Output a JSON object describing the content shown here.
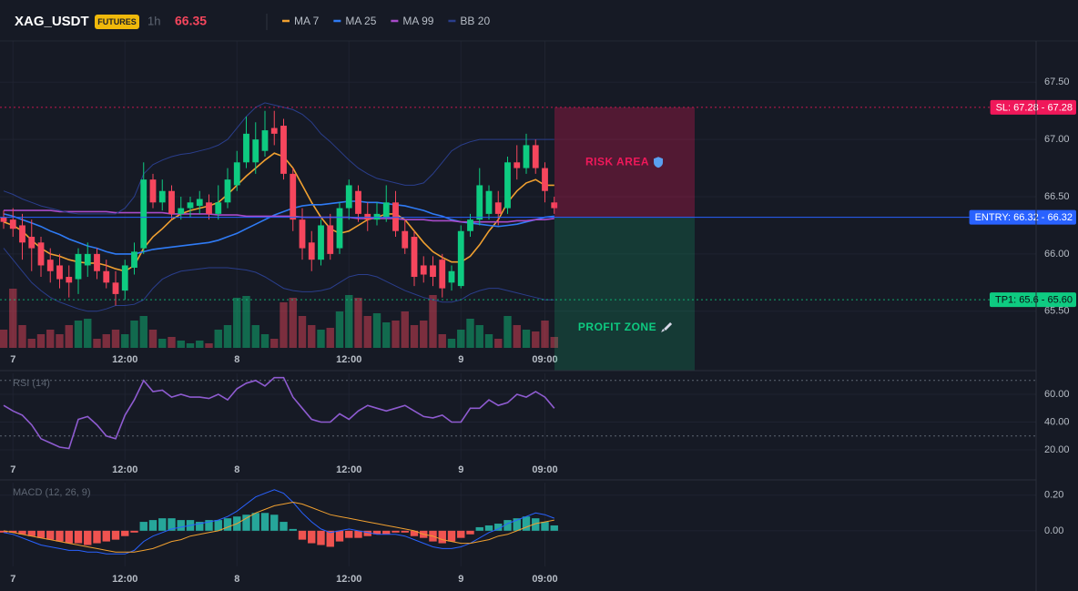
{
  "header": {
    "symbol": "XAG_USDT",
    "badge": "FUTURES",
    "interval": "1h",
    "price": "66.35"
  },
  "chart_data": [
    {
      "type": "candlestick",
      "categories": [
        null,
        "7",
        null,
        null,
        null,
        null,
        null,
        null,
        null,
        null,
        null,
        null,
        null,
        "12:00",
        null,
        null,
        null,
        null,
        null,
        null,
        null,
        null,
        null,
        null,
        null,
        "8",
        null,
        null,
        null,
        null,
        null,
        null,
        null,
        null,
        null,
        null,
        null,
        "12:00",
        null,
        null,
        null,
        null,
        null,
        null,
        null,
        null,
        null,
        null,
        null,
        "9",
        null,
        null,
        null,
        null,
        null,
        null,
        null,
        null,
        "09:00",
        null
      ],
      "open": [
        66.32,
        66.3,
        66.25,
        66.15,
        66.1,
        65.95,
        65.9,
        65.8,
        65.78,
        65.9,
        66.0,
        65.85,
        65.75,
        65.68,
        65.88,
        66.05,
        66.65,
        66.45,
        66.55,
        66.35,
        66.4,
        66.42,
        66.45,
        66.35,
        66.45,
        66.6,
        66.8,
        66.8,
        66.9,
        67.1,
        67.12,
        66.7,
        66.3,
        66.1,
        65.95,
        66.25,
        66.05,
        66.4,
        66.55,
        66.35,
        66.3,
        66.32,
        66.45,
        66.2,
        66.15,
        65.9,
        65.9,
        65.95,
        65.75,
        65.72,
        66.2,
        66.3,
        66.35,
        66.45,
        66.4,
        66.8,
        66.75,
        66.95,
        66.75,
        66.45
      ],
      "high": [
        66.38,
        66.4,
        66.35,
        66.3,
        66.15,
        66.05,
        66.0,
        65.9,
        66.05,
        66.1,
        66.05,
        65.95,
        65.85,
        65.95,
        66.1,
        66.8,
        66.7,
        66.65,
        66.6,
        66.5,
        66.5,
        66.55,
        66.52,
        66.6,
        66.75,
        66.9,
        67.2,
        67.15,
        67.25,
        67.25,
        67.18,
        66.75,
        66.4,
        66.2,
        66.3,
        66.35,
        66.45,
        66.65,
        66.6,
        66.45,
        66.45,
        66.6,
        66.55,
        66.3,
        66.2,
        65.98,
        65.98,
        66.0,
        65.9,
        66.25,
        66.35,
        66.75,
        66.6,
        66.55,
        66.85,
        66.95,
        67.05,
        67.0,
        66.8,
        66.5
      ],
      "low": [
        66.22,
        66.15,
        65.95,
        65.85,
        65.8,
        65.75,
        65.7,
        65.62,
        65.65,
        65.8,
        65.78,
        65.7,
        65.55,
        65.6,
        65.82,
        66.0,
        66.4,
        66.38,
        66.3,
        66.3,
        66.32,
        66.35,
        66.3,
        66.3,
        66.4,
        66.55,
        66.75,
        66.7,
        66.85,
        66.95,
        66.65,
        66.2,
        65.95,
        65.85,
        65.9,
        65.95,
        66.0,
        66.3,
        66.28,
        66.2,
        66.25,
        66.28,
        66.15,
        66.0,
        65.72,
        65.75,
        65.72,
        65.62,
        65.68,
        65.7,
        66.15,
        66.25,
        66.3,
        66.25,
        66.35,
        66.65,
        66.7,
        66.7,
        66.45,
        66.35
      ],
      "close": [
        66.28,
        66.22,
        66.1,
        66.05,
        65.9,
        65.85,
        65.78,
        65.75,
        66.0,
        66.0,
        65.85,
        65.75,
        65.65,
        65.9,
        66.02,
        66.65,
        66.45,
        66.55,
        66.35,
        66.4,
        66.45,
        66.48,
        66.35,
        66.45,
        66.65,
        66.8,
        67.05,
        67.0,
        67.08,
        67.05,
        66.7,
        66.3,
        66.05,
        65.95,
        66.25,
        66.0,
        66.4,
        66.6,
        66.35,
        66.3,
        66.35,
        66.45,
        66.2,
        66.05,
        65.8,
        65.82,
        65.8,
        65.7,
        65.85,
        66.2,
        66.3,
        66.6,
        66.55,
        66.35,
        66.8,
        66.75,
        66.95,
        66.75,
        66.55,
        66.4
      ],
      "volume": [
        20,
        65,
        25,
        10,
        15,
        20,
        15,
        25,
        30,
        32,
        10,
        15,
        20,
        15,
        30,
        35,
        20,
        10,
        12,
        8,
        5,
        8,
        5,
        20,
        25,
        55,
        57,
        25,
        15,
        10,
        50,
        55,
        35,
        25,
        20,
        22,
        40,
        58,
        55,
        35,
        38,
        28,
        30,
        40,
        25,
        30,
        58,
        15,
        10,
        20,
        32,
        25,
        15,
        10,
        35,
        25,
        20,
        18,
        30,
        12
      ],
      "vlim": [
        0,
        100
      ],
      "up_color": "#0ecb81",
      "down_color": "#f6465d",
      "series": [
        {
          "name": "MA 7",
          "color": "#f0a030",
          "values": [
            66.28,
            66.25,
            66.2,
            66.12,
            66.05,
            66.0,
            65.98,
            65.95,
            65.93,
            65.92,
            65.92,
            65.9,
            65.87,
            65.85,
            65.9,
            66.05,
            66.15,
            66.22,
            66.3,
            66.35,
            66.38,
            66.4,
            66.42,
            66.45,
            66.52,
            66.6,
            66.68,
            66.75,
            66.82,
            66.88,
            66.85,
            66.75,
            66.6,
            66.45,
            66.32,
            66.22,
            66.18,
            66.2,
            66.25,
            66.3,
            66.32,
            66.35,
            66.35,
            66.3,
            66.2,
            66.1,
            66.02,
            65.97,
            65.93,
            65.93,
            65.98,
            66.08,
            66.2,
            66.3,
            66.45,
            66.55,
            66.62,
            66.65,
            66.6,
            66.6
          ]
        },
        {
          "name": "MA 25",
          "color": "#2f7bf5",
          "values": [
            66.35,
            66.33,
            66.3,
            66.27,
            66.24,
            66.2,
            66.17,
            66.13,
            66.1,
            66.07,
            66.05,
            66.02,
            66.0,
            66.0,
            66.0,
            66.02,
            66.04,
            66.05,
            66.06,
            66.07,
            66.08,
            66.09,
            66.1,
            66.12,
            66.15,
            66.18,
            66.22,
            66.26,
            66.3,
            66.34,
            66.37,
            66.4,
            66.42,
            66.43,
            66.43,
            66.44,
            66.45,
            66.46,
            66.46,
            66.45,
            66.45,
            66.44,
            66.43,
            66.42,
            66.4,
            66.38,
            66.35,
            66.33,
            66.3,
            66.28,
            66.27,
            66.26,
            66.25,
            66.24,
            66.25,
            66.26,
            66.28,
            66.3,
            66.32,
            66.33
          ]
        },
        {
          "name": "MA 99",
          "color": "#a84bc9",
          "values": [
            66.38,
            66.38,
            66.38,
            66.38,
            66.38,
            66.38,
            66.37,
            66.37,
            66.37,
            66.37,
            66.37,
            66.37,
            66.36,
            66.36,
            66.36,
            66.36,
            66.36,
            66.36,
            66.35,
            66.35,
            66.35,
            66.35,
            66.35,
            66.34,
            66.34,
            66.34,
            66.33,
            66.33,
            66.33,
            66.33,
            66.33,
            66.33,
            66.32,
            66.32,
            66.32,
            66.32,
            66.32,
            66.32,
            66.31,
            66.31,
            66.31,
            66.31,
            66.31,
            66.3,
            66.3,
            66.3,
            66.29,
            66.29,
            66.29,
            66.28,
            66.28,
            66.28,
            66.28,
            66.28,
            66.28,
            66.29,
            66.29,
            66.3,
            66.3,
            66.31
          ]
        },
        {
          "name": "BB 20",
          "color": "#2a3e8c",
          "values": [
            66.55,
            66.52,
            66.48,
            66.45,
            66.42,
            66.4,
            66.38,
            66.36,
            66.35,
            66.35,
            66.35,
            66.35,
            66.35,
            66.4,
            66.5,
            66.7,
            66.78,
            66.82,
            66.85,
            66.87,
            66.88,
            66.9,
            66.92,
            66.95,
            67.0,
            67.1,
            67.2,
            67.28,
            67.32,
            67.3,
            67.28,
            67.26,
            67.22,
            67.15,
            67.05,
            66.98,
            66.9,
            66.82,
            66.75,
            66.7,
            66.66,
            66.64,
            66.62,
            66.6,
            66.6,
            66.62,
            66.7,
            66.8,
            66.9,
            66.95,
            66.98,
            67.0,
            67.0,
            67.0,
            67.0,
            67.0,
            67.0,
            67.0,
            67.0,
            67.0
          ],
          "lower": [
            66.05,
            65.95,
            65.85,
            65.75,
            65.68,
            65.62,
            65.58,
            65.55,
            65.52,
            65.5,
            65.5,
            65.52,
            65.55,
            65.55,
            65.56,
            65.6,
            65.7,
            65.78,
            65.82,
            65.85,
            65.86,
            65.87,
            65.88,
            65.88,
            65.88,
            65.87,
            65.86,
            65.84,
            65.8,
            65.75,
            65.7,
            65.68,
            65.67,
            65.67,
            65.68,
            65.7,
            65.75,
            65.8,
            65.82,
            65.82,
            65.8,
            65.76,
            65.72,
            65.68,
            65.65,
            65.62,
            65.6,
            65.58,
            65.58,
            65.6,
            65.65,
            65.68,
            65.7,
            65.7,
            65.68,
            65.66,
            65.64,
            65.62,
            65.6,
            65.6
          ]
        }
      ],
      "ylim": [
        65.18,
        67.86
      ],
      "yticks": [
        {
          "value": 67.5,
          "label": "67.50"
        },
        {
          "value": 67,
          "label": "67.00"
        },
        {
          "value": 66.5,
          "label": "66.50"
        },
        {
          "value": 66,
          "label": "66.00"
        },
        {
          "value": 65.5,
          "label": "65.50"
        }
      ],
      "grid": true,
      "levels": [
        {
          "label": "SL: 67.28 - 67.28",
          "value": 67.28,
          "color": "#f0185a",
          "text_color": "#ffffff",
          "style": "dotted"
        },
        {
          "label": "ENTRY: 66.32 - 66.32",
          "value": 66.32,
          "color": "#2962ff",
          "text_color": "#ffffff",
          "style": "solid"
        },
        {
          "label": "TP1: 65.6 - 65.60",
          "value": 65.6,
          "color": "#0ecb81",
          "text_color": "#0b0e11",
          "style": "dotted"
        }
      ],
      "zones": [
        {
          "label": "RISK AREA",
          "color": "#f0185a"
        },
        {
          "label": "PROFIT ZONE",
          "color": "#0ecb81"
        }
      ]
    },
    {
      "type": "line",
      "title": "RSI (14)",
      "categories": [
        null,
        "7",
        null,
        null,
        null,
        null,
        null,
        null,
        null,
        null,
        null,
        null,
        null,
        "12:00",
        null,
        null,
        null,
        null,
        null,
        null,
        null,
        null,
        null,
        null,
        null,
        "8",
        null,
        null,
        null,
        null,
        null,
        null,
        null,
        null,
        null,
        null,
        null,
        "12:00",
        null,
        null,
        null,
        null,
        null,
        null,
        null,
        null,
        null,
        null,
        null,
        "9",
        null,
        null,
        null,
        null,
        null,
        null,
        null,
        null,
        "09:00",
        null
      ],
      "color": "#8e5bd0",
      "values": [
        52,
        48,
        45,
        38,
        28,
        25,
        22,
        21,
        42,
        44,
        38,
        30,
        28,
        45,
        56,
        70,
        62,
        63,
        58,
        60,
        58,
        58,
        57,
        60,
        56,
        64,
        68,
        70,
        66,
        72,
        72,
        58,
        50,
        42,
        40,
        40,
        46,
        42,
        48,
        52,
        50,
        48,
        50,
        52,
        48,
        44,
        43,
        45,
        40,
        40,
        50,
        50,
        56,
        52,
        54,
        60,
        58,
        62,
        58,
        50
      ],
      "ylim": [
        12.8,
        75.1
      ],
      "yticks": [
        {
          "value": 60,
          "label": "60.00"
        },
        {
          "value": 40,
          "label": "40.00"
        },
        {
          "value": 20,
          "label": "20.00"
        }
      ],
      "guides": [
        70,
        30
      ],
      "grid": true
    },
    {
      "type": "macd",
      "title": "MACD (12, 26, 9)",
      "categories": [
        null,
        "7",
        null,
        null,
        null,
        null,
        null,
        null,
        null,
        null,
        null,
        null,
        null,
        "12:00",
        null,
        null,
        null,
        null,
        null,
        null,
        null,
        null,
        null,
        null,
        null,
        "8",
        null,
        null,
        null,
        null,
        null,
        null,
        null,
        null,
        null,
        null,
        null,
        "12:00",
        null,
        null,
        null,
        null,
        null,
        null,
        null,
        null,
        null,
        null,
        null,
        "9",
        null,
        null,
        null,
        null,
        null,
        null,
        null,
        null,
        "09:00",
        null
      ],
      "histogram": {
        "up_color": "#26a69a",
        "down_color": "#ef5350",
        "values": [
          -0.01,
          -0.01,
          -0.02,
          -0.03,
          -0.04,
          -0.05,
          -0.06,
          -0.07,
          -0.07,
          -0.08,
          -0.07,
          -0.06,
          -0.05,
          -0.03,
          -0.01,
          0.05,
          0.06,
          0.07,
          0.07,
          0.06,
          0.06,
          0.05,
          0.06,
          0.06,
          0.07,
          0.08,
          0.09,
          0.1,
          0.1,
          0.09,
          0.05,
          0.01,
          -0.05,
          -0.07,
          -0.08,
          -0.09,
          -0.06,
          -0.04,
          -0.04,
          -0.03,
          -0.02,
          -0.02,
          -0.01,
          -0.01,
          -0.03,
          -0.04,
          -0.06,
          -0.07,
          -0.06,
          -0.04,
          -0.02,
          0.02,
          0.03,
          0.04,
          0.06,
          0.07,
          0.08,
          0.07,
          0.05,
          0.03
        ]
      },
      "macd": {
        "color": "#2962ff",
        "values": [
          -0.01,
          -0.02,
          -0.04,
          -0.06,
          -0.08,
          -0.09,
          -0.1,
          -0.11,
          -0.11,
          -0.12,
          -0.12,
          -0.13,
          -0.13,
          -0.13,
          -0.11,
          -0.06,
          -0.03,
          -0.01,
          0.01,
          0.02,
          0.03,
          0.04,
          0.05,
          0.06,
          0.08,
          0.11,
          0.15,
          0.19,
          0.21,
          0.23,
          0.21,
          0.16,
          0.1,
          0.05,
          0.01,
          -0.01,
          0.0,
          0.01,
          0.0,
          -0.01,
          -0.02,
          -0.02,
          -0.02,
          -0.03,
          -0.05,
          -0.07,
          -0.09,
          -0.1,
          -0.1,
          -0.09,
          -0.07,
          -0.04,
          -0.01,
          0.01,
          0.04,
          0.06,
          0.08,
          0.1,
          0.09,
          0.07
        ]
      },
      "signal": {
        "color": "#f0a030",
        "values": [
          0.0,
          -0.01,
          -0.02,
          -0.03,
          -0.04,
          -0.05,
          -0.06,
          -0.07,
          -0.08,
          -0.09,
          -0.1,
          -0.11,
          -0.12,
          -0.12,
          -0.12,
          -0.11,
          -0.1,
          -0.08,
          -0.06,
          -0.05,
          -0.03,
          -0.02,
          -0.01,
          0.0,
          0.02,
          0.04,
          0.07,
          0.1,
          0.12,
          0.14,
          0.15,
          0.16,
          0.15,
          0.13,
          0.11,
          0.09,
          0.08,
          0.07,
          0.06,
          0.05,
          0.04,
          0.03,
          0.02,
          0.01,
          0.0,
          -0.02,
          -0.03,
          -0.05,
          -0.06,
          -0.07,
          -0.07,
          -0.06,
          -0.05,
          -0.03,
          -0.02,
          0.0,
          0.02,
          0.04,
          0.05,
          0.06
        ]
      },
      "ylim": [
        -0.2,
        0.27
      ],
      "yticks": [
        {
          "value": 0.2,
          "label": "0.20"
        },
        {
          "value": 0,
          "label": "0.00"
        }
      ],
      "grid": true
    }
  ]
}
